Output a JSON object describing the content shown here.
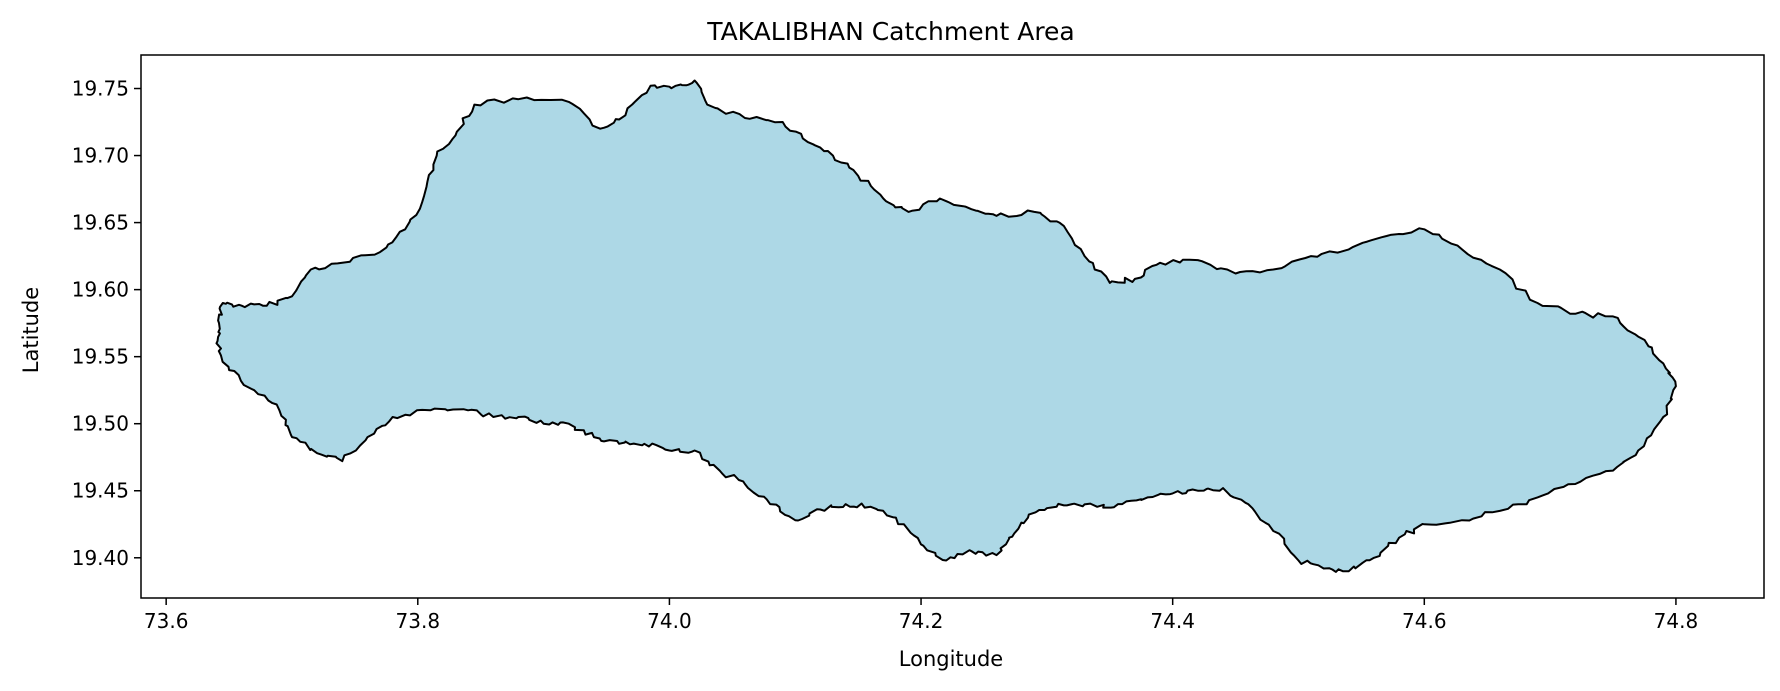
{
  "chart_data": {
    "type": "map",
    "title": "TAKALIBHAN Catchment Area",
    "xlabel": "Longitude",
    "ylabel": "Latitude",
    "xlim": [
      73.58,
      74.87
    ],
    "ylim": [
      19.37,
      19.775
    ],
    "xticks": [
      {
        "value": 73.6,
        "label": "73.6"
      },
      {
        "value": 73.8,
        "label": "73.8"
      },
      {
        "value": 74.0,
        "label": "74.0"
      },
      {
        "value": 74.2,
        "label": "74.2"
      },
      {
        "value": 74.4,
        "label": "74.4"
      },
      {
        "value": 74.6,
        "label": "74.6"
      },
      {
        "value": 74.8,
        "label": "74.8"
      }
    ],
    "yticks": [
      {
        "value": 19.4,
        "label": "19.40"
      },
      {
        "value": 19.45,
        "label": "19.45"
      },
      {
        "value": 19.5,
        "label": "19.50"
      },
      {
        "value": 19.55,
        "label": "19.55"
      },
      {
        "value": 19.6,
        "label": "19.60"
      },
      {
        "value": 19.65,
        "label": "19.65"
      },
      {
        "value": 19.7,
        "label": "19.70"
      },
      {
        "value": 19.75,
        "label": "19.75"
      }
    ],
    "fill_color": "#add8e6",
    "edge_color": "#000000",
    "boundary": [
      [
        73.645,
        19.59
      ],
      [
        73.66,
        19.588
      ],
      [
        73.68,
        19.588
      ],
      [
        73.7,
        19.595
      ],
      [
        73.715,
        19.615
      ],
      [
        73.74,
        19.62
      ],
      [
        73.77,
        19.628
      ],
      [
        73.79,
        19.645
      ],
      [
        73.805,
        19.67
      ],
      [
        73.815,
        19.7
      ],
      [
        73.83,
        19.715
      ],
      [
        73.845,
        19.738
      ],
      [
        73.88,
        19.742
      ],
      [
        73.92,
        19.74
      ],
      [
        73.945,
        19.72
      ],
      [
        73.965,
        19.73
      ],
      [
        73.985,
        19.752
      ],
      [
        74.005,
        19.752
      ],
      [
        74.02,
        19.756
      ],
      [
        74.03,
        19.738
      ],
      [
        74.06,
        19.728
      ],
      [
        74.09,
        19.725
      ],
      [
        74.11,
        19.71
      ],
      [
        74.13,
        19.7
      ],
      [
        74.15,
        19.685
      ],
      [
        74.17,
        19.668
      ],
      [
        74.19,
        19.658
      ],
      [
        74.215,
        19.668
      ],
      [
        74.24,
        19.66
      ],
      [
        74.26,
        19.655
      ],
      [
        74.29,
        19.658
      ],
      [
        74.31,
        19.65
      ],
      [
        74.33,
        19.625
      ],
      [
        74.35,
        19.605
      ],
      [
        74.37,
        19.608
      ],
      [
        74.39,
        19.62
      ],
      [
        74.42,
        19.622
      ],
      [
        74.45,
        19.612
      ],
      [
        74.48,
        19.615
      ],
      [
        74.51,
        19.625
      ],
      [
        74.54,
        19.63
      ],
      [
        74.57,
        19.64
      ],
      [
        74.6,
        19.645
      ],
      [
        74.63,
        19.63
      ],
      [
        74.66,
        19.615
      ],
      [
        74.69,
        19.59
      ],
      [
        74.72,
        19.582
      ],
      [
        74.75,
        19.58
      ],
      [
        74.77,
        19.565
      ],
      [
        74.79,
        19.545
      ],
      [
        74.8,
        19.528
      ],
      [
        74.79,
        19.505
      ],
      [
        74.77,
        19.48
      ],
      [
        74.75,
        19.465
      ],
      [
        74.72,
        19.455
      ],
      [
        74.69,
        19.445
      ],
      [
        74.66,
        19.435
      ],
      [
        74.63,
        19.428
      ],
      [
        74.6,
        19.425
      ],
      [
        74.58,
        19.415
      ],
      [
        74.56,
        19.4
      ],
      [
        74.54,
        19.39
      ],
      [
        74.52,
        19.392
      ],
      [
        74.5,
        19.398
      ],
      [
        74.48,
        19.42
      ],
      [
        74.46,
        19.44
      ],
      [
        74.44,
        19.452
      ],
      [
        74.42,
        19.45
      ],
      [
        74.4,
        19.448
      ],
      [
        74.38,
        19.445
      ],
      [
        74.36,
        19.44
      ],
      [
        74.34,
        19.438
      ],
      [
        74.32,
        19.44
      ],
      [
        74.3,
        19.437
      ],
      [
        74.285,
        19.43
      ],
      [
        74.27,
        19.415
      ],
      [
        74.26,
        19.402
      ],
      [
        74.24,
        19.405
      ],
      [
        74.22,
        19.398
      ],
      [
        74.2,
        19.41
      ],
      [
        74.18,
        19.43
      ],
      [
        74.16,
        19.438
      ],
      [
        74.14,
        19.44
      ],
      [
        74.12,
        19.436
      ],
      [
        74.1,
        19.428
      ],
      [
        74.08,
        19.44
      ],
      [
        74.06,
        19.455
      ],
      [
        74.04,
        19.465
      ],
      [
        74.02,
        19.48
      ],
      [
        74.0,
        19.48
      ],
      [
        73.98,
        19.485
      ],
      [
        73.96,
        19.485
      ],
      [
        73.94,
        19.49
      ],
      [
        73.92,
        19.5
      ],
      [
        73.9,
        19.5
      ],
      [
        73.88,
        19.505
      ],
      [
        73.86,
        19.505
      ],
      [
        73.84,
        19.51
      ],
      [
        73.81,
        19.51
      ],
      [
        73.78,
        19.505
      ],
      [
        73.76,
        19.49
      ],
      [
        73.74,
        19.472
      ],
      [
        73.72,
        19.478
      ],
      [
        73.7,
        19.49
      ],
      [
        73.69,
        19.51
      ],
      [
        73.67,
        19.525
      ],
      [
        73.65,
        19.54
      ],
      [
        73.64,
        19.56
      ],
      [
        73.642,
        19.575
      ]
    ]
  }
}
